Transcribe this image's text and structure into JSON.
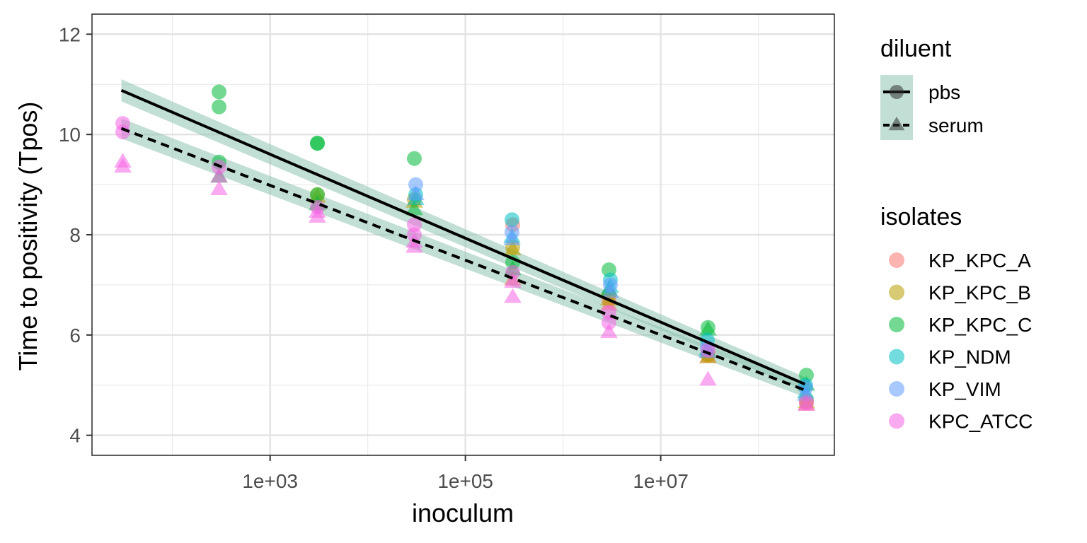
{
  "chart_data": {
    "type": "scatter",
    "xlabel": "inoculum",
    "ylabel": "Time to positivity (Tpos)",
    "x_scale": "log10",
    "xlim": [
      15,
      600000000
    ],
    "ylim": [
      3.6,
      12.4
    ],
    "x_major_ticks": [
      {
        "value": 1000,
        "label": "1e+03"
      },
      {
        "value": 100000,
        "label": "1e+05"
      },
      {
        "value": 10000000,
        "label": "1e+07"
      }
    ],
    "x_minor_ticks": [
      100,
      10000,
      1000000,
      100000000
    ],
    "y_major_ticks": [
      {
        "value": 4,
        "label": "4"
      },
      {
        "value": 6,
        "label": "6"
      },
      {
        "value": 8,
        "label": "8"
      },
      {
        "value": 10,
        "label": "10"
      },
      {
        "value": 12,
        "label": "12"
      }
    ],
    "y_minor_ticks": [
      5,
      7,
      9,
      11
    ],
    "grid": true,
    "legend_position": "right",
    "legends": [
      {
        "title": "diluent",
        "entries": [
          {
            "label": "pbs",
            "line": "solid",
            "shape": "circle"
          },
          {
            "label": "serum",
            "line": "dashed",
            "shape": "triangle"
          }
        ]
      },
      {
        "title": "isolates",
        "entries": [
          {
            "label": "KP_KPC_A",
            "color": "#F8766D"
          },
          {
            "label": "KP_KPC_B",
            "color": "#B79F00"
          },
          {
            "label": "KP_KPC_C",
            "color": "#00BA38"
          },
          {
            "label": "KP_NDM",
            "color": "#00BFC4"
          },
          {
            "label": "KP_VIM",
            "color": "#619CFF"
          },
          {
            "label": "KPC_ATCC",
            "color": "#F564E3"
          }
        ]
      }
    ],
    "ribbon_color": "#8FC5B2",
    "fits": [
      {
        "diluent": "pbs",
        "line": "solid",
        "x": [
          30,
          300000000
        ],
        "y": [
          10.88,
          5.02
        ],
        "band_halfwidth": [
          0.22,
          0.14
        ]
      },
      {
        "diluent": "serum",
        "line": "dashed",
        "x": [
          30,
          300000000
        ],
        "y": [
          10.12,
          4.9
        ],
        "band_halfwidth": [
          0.2,
          0.14
        ]
      }
    ],
    "series": [
      {
        "name": "KP_KPC_A",
        "color": "#F8766D",
        "points": [
          {
            "x": 300000,
            "y": 8.2,
            "d": "pbs"
          },
          {
            "x": 300000,
            "y": 7.1,
            "d": "serum"
          },
          {
            "x": 3000000,
            "y": 6.7,
            "d": "pbs"
          },
          {
            "x": 3000000,
            "y": 6.6,
            "d": "serum"
          },
          {
            "x": 30000000,
            "y": 5.6,
            "d": "pbs"
          },
          {
            "x": 30000000,
            "y": 5.55,
            "d": "serum"
          },
          {
            "x": 300000000,
            "y": 4.65,
            "d": "pbs"
          },
          {
            "x": 300000000,
            "y": 4.6,
            "d": "serum"
          }
        ]
      },
      {
        "name": "KP_KPC_B",
        "color": "#B79F00",
        "points": [
          {
            "x": 3000,
            "y": 8.8,
            "d": "pbs"
          },
          {
            "x": 3000,
            "y": 8.75,
            "d": "serum"
          },
          {
            "x": 30000,
            "y": 8.7,
            "d": "pbs"
          },
          {
            "x": 30000,
            "y": 8.65,
            "d": "serum"
          },
          {
            "x": 300000,
            "y": 7.75,
            "d": "pbs"
          },
          {
            "x": 300000,
            "y": 7.7,
            "d": "serum"
          },
          {
            "x": 3000000,
            "y": 6.8,
            "d": "pbs"
          },
          {
            "x": 3000000,
            "y": 6.7,
            "d": "serum"
          },
          {
            "x": 30000000,
            "y": 5.6,
            "d": "pbs"
          },
          {
            "x": 30000000,
            "y": 5.55,
            "d": "serum"
          },
          {
            "x": 300000000,
            "y": 4.7,
            "d": "pbs"
          },
          {
            "x": 300000000,
            "y": 4.65,
            "d": "serum"
          }
        ]
      },
      {
        "name": "KP_KPC_C",
        "color": "#00BA38",
        "points": [
          {
            "x": 300,
            "y": 10.85,
            "d": "pbs"
          },
          {
            "x": 300,
            "y": 10.55,
            "d": "pbs"
          },
          {
            "x": 300,
            "y": 9.45,
            "d": "pbs"
          },
          {
            "x": 300,
            "y": 9.15,
            "d": "serum"
          },
          {
            "x": 3000,
            "y": 9.83,
            "d": "pbs"
          },
          {
            "x": 3000,
            "y": 9.82,
            "d": "pbs"
          },
          {
            "x": 3000,
            "y": 8.8,
            "d": "pbs"
          },
          {
            "x": 3000,
            "y": 8.6,
            "d": "serum"
          },
          {
            "x": 30000,
            "y": 9.52,
            "d": "pbs"
          },
          {
            "x": 30000,
            "y": 8.5,
            "d": "serum"
          },
          {
            "x": 300000,
            "y": 7.45,
            "d": "pbs"
          },
          {
            "x": 300000,
            "y": 7.3,
            "d": "serum"
          },
          {
            "x": 3000000,
            "y": 7.3,
            "d": "pbs"
          },
          {
            "x": 3000000,
            "y": 6.9,
            "d": "serum"
          },
          {
            "x": 30000000,
            "y": 6.15,
            "d": "pbs"
          },
          {
            "x": 30000000,
            "y": 6.1,
            "d": "serum"
          },
          {
            "x": 300000000,
            "y": 5.2,
            "d": "pbs"
          },
          {
            "x": 300000000,
            "y": 5.0,
            "d": "serum"
          }
        ]
      },
      {
        "name": "KP_NDM",
        "color": "#00BFC4",
        "points": [
          {
            "x": 30000,
            "y": 8.8,
            "d": "pbs"
          },
          {
            "x": 30000,
            "y": 8.7,
            "d": "serum"
          },
          {
            "x": 300000,
            "y": 8.3,
            "d": "pbs"
          },
          {
            "x": 300000,
            "y": 7.95,
            "d": "serum"
          },
          {
            "x": 3000000,
            "y": 7.1,
            "d": "pbs"
          },
          {
            "x": 3000000,
            "y": 6.95,
            "d": "serum"
          },
          {
            "x": 30000000,
            "y": 5.9,
            "d": "pbs"
          },
          {
            "x": 30000000,
            "y": 5.7,
            "d": "serum"
          },
          {
            "x": 300000000,
            "y": 5.0,
            "d": "pbs"
          },
          {
            "x": 300000000,
            "y": 4.85,
            "d": "serum"
          }
        ]
      },
      {
        "name": "KP_VIM",
        "color": "#619CFF",
        "points": [
          {
            "x": 30000,
            "y": 9.0,
            "d": "pbs"
          },
          {
            "x": 30000,
            "y": 8.8,
            "d": "serum"
          },
          {
            "x": 300000,
            "y": 8.05,
            "d": "pbs"
          },
          {
            "x": 300000,
            "y": 7.9,
            "d": "serum"
          },
          {
            "x": 3000000,
            "y": 7.0,
            "d": "pbs"
          },
          {
            "x": 3000000,
            "y": 6.85,
            "d": "serum"
          },
          {
            "x": 30000000,
            "y": 5.75,
            "d": "pbs"
          },
          {
            "x": 30000000,
            "y": 5.65,
            "d": "serum"
          },
          {
            "x": 300000000,
            "y": 4.95,
            "d": "pbs"
          },
          {
            "x": 300000000,
            "y": 4.8,
            "d": "serum"
          }
        ]
      },
      {
        "name": "KPC_ATCC",
        "color": "#F564E3",
        "points": [
          {
            "x": 30,
            "y": 10.22,
            "d": "pbs"
          },
          {
            "x": 30,
            "y": 10.05,
            "d": "pbs"
          },
          {
            "x": 30,
            "y": 9.45,
            "d": "serum"
          },
          {
            "x": 30,
            "y": 9.35,
            "d": "serum"
          },
          {
            "x": 300,
            "y": 9.35,
            "d": "pbs"
          },
          {
            "x": 300,
            "y": 9.15,
            "d": "serum"
          },
          {
            "x": 300,
            "y": 8.9,
            "d": "serum"
          },
          {
            "x": 3000,
            "y": 8.55,
            "d": "pbs"
          },
          {
            "x": 3000,
            "y": 8.45,
            "d": "serum"
          },
          {
            "x": 3000,
            "y": 8.35,
            "d": "serum"
          },
          {
            "x": 30000,
            "y": 8.2,
            "d": "pbs"
          },
          {
            "x": 30000,
            "y": 8.0,
            "d": "pbs"
          },
          {
            "x": 30000,
            "y": 7.85,
            "d": "serum"
          },
          {
            "x": 30000,
            "y": 7.75,
            "d": "serum"
          },
          {
            "x": 300000,
            "y": 7.25,
            "d": "pbs"
          },
          {
            "x": 300000,
            "y": 7.05,
            "d": "serum"
          },
          {
            "x": 300000,
            "y": 6.75,
            "d": "serum"
          },
          {
            "x": 3000000,
            "y": 6.45,
            "d": "pbs"
          },
          {
            "x": 3000000,
            "y": 6.25,
            "d": "pbs"
          },
          {
            "x": 3000000,
            "y": 6.05,
            "d": "serum"
          },
          {
            "x": 30000000,
            "y": 5.7,
            "d": "pbs"
          },
          {
            "x": 30000000,
            "y": 5.1,
            "d": "serum"
          },
          {
            "x": 300000000,
            "y": 4.65,
            "d": "pbs"
          },
          {
            "x": 300000000,
            "y": 4.6,
            "d": "serum"
          }
        ]
      }
    ]
  }
}
